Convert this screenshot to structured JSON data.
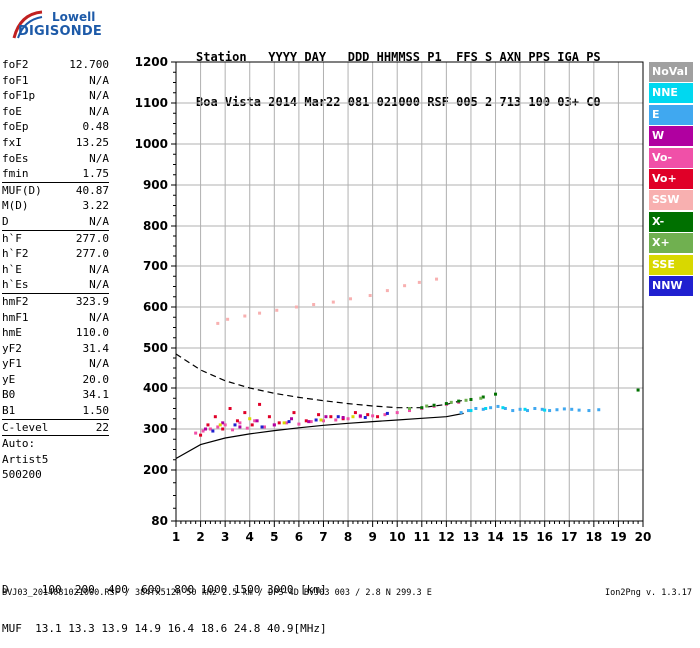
{
  "logo": {
    "line1": "Lowell",
    "line2": "DIGISONDE"
  },
  "header": {
    "row1": [
      "Station",
      "YYYY",
      "DAY",
      "DDD",
      "HHMMSS",
      "P1",
      "FFS",
      "S",
      "AXN",
      "PPS",
      "IGA",
      "PS"
    ],
    "row2": [
      "Boa Vista",
      "2014",
      "Mar22",
      "081",
      "021000",
      "RSF",
      "005",
      "2",
      "713",
      "100",
      "03+",
      "C0"
    ]
  },
  "params": [
    {
      "k": "foF2",
      "v": "12.700"
    },
    {
      "k": "foF1",
      "v": "N/A"
    },
    {
      "k": "foF1p",
      "v": "N/A"
    },
    {
      "k": "foE",
      "v": "N/A"
    },
    {
      "k": "foEp",
      "v": "0.48"
    },
    {
      "k": "fxI",
      "v": "13.25"
    },
    {
      "k": "foEs",
      "v": "N/A"
    },
    {
      "k": "fmin",
      "v": "1.75"
    },
    {
      "sep": true
    },
    {
      "k": "MUF(D)",
      "v": "40.87"
    },
    {
      "k": "M(D)",
      "v": "3.22"
    },
    {
      "k": "D",
      "v": "N/A"
    },
    {
      "sep": true
    },
    {
      "k": "h`F",
      "v": "277.0"
    },
    {
      "k": "h`F2",
      "v": "277.0"
    },
    {
      "k": "h`E",
      "v": "N/A"
    },
    {
      "k": "h`Es",
      "v": "N/A"
    },
    {
      "sep": true
    },
    {
      "k": "hmF2",
      "v": "323.9"
    },
    {
      "k": "hmF1",
      "v": "N/A"
    },
    {
      "k": "hmE",
      "v": "110.0"
    },
    {
      "k": "yF2",
      "v": "31.4"
    },
    {
      "k": "yF1",
      "v": "N/A"
    },
    {
      "k": "yE",
      "v": "20.0"
    },
    {
      "k": "B0",
      "v": "34.1"
    },
    {
      "k": "B1",
      "v": "1.50"
    },
    {
      "sep": true
    },
    {
      "k": "C-level",
      "v": "22"
    },
    {
      "sep": true
    },
    {
      "text": "Auto:"
    },
    {
      "text": "Artist5"
    },
    {
      "text": "500200"
    }
  ],
  "legend": [
    {
      "label": "NoVal",
      "color": "#a0a0a0"
    },
    {
      "label": "NNE",
      "color": "#00d8f0"
    },
    {
      "label": "E",
      "color": "#40a8f0"
    },
    {
      "label": "W",
      "color": "#b000a0"
    },
    {
      "label": "Vo-",
      "color": "#f050a8"
    },
    {
      "label": "Vo+",
      "color": "#e00028"
    },
    {
      "label": "SSW",
      "color": "#f8b0b0"
    },
    {
      "label": "X-",
      "color": "#007000"
    },
    {
      "label": "X+",
      "color": "#70b050"
    },
    {
      "label": "SSE",
      "color": "#d8d800"
    },
    {
      "label": "NNW",
      "color": "#2020d0"
    }
  ],
  "footer": {
    "d_label": "D",
    "d_values": [
      "100",
      "200",
      "400",
      "600",
      "800",
      "1000",
      "1500",
      "3000",
      "[km]"
    ],
    "muf_label": "MUF",
    "muf_values": [
      "13.1",
      "13.3",
      "13.9",
      "14.9",
      "16.4",
      "18.6",
      "24.8",
      "40.9",
      "[MHz]"
    ],
    "fileinfo": "BVJ03_2014081021000.RSF / 384fx512h 50 kHz 2.5 km / DPS-4D BVJ03 003 / 2.8 N 299.3 E",
    "version": "Ion2Png v. 1.3.17"
  },
  "chart_data": {
    "type": "scatter",
    "x_ticks": [
      1,
      2,
      3,
      4,
      5,
      6,
      7,
      8,
      9,
      10,
      11,
      12,
      13,
      14,
      15,
      16,
      17,
      18,
      19,
      20
    ],
    "y_ticks": [
      80,
      200,
      300,
      400,
      500,
      600,
      700,
      800,
      900,
      1000,
      1100,
      1200
    ],
    "xlim": [
      1,
      20
    ],
    "ylim": [
      80,
      1200
    ],
    "grid": true,
    "series": [
      {
        "name": "Vo-",
        "color": "#f050a8",
        "x": [
          1.8,
          2.1,
          2.4,
          2.7,
          3.0,
          3.3,
          3.6,
          3.9,
          4.2,
          4.6,
          5.0,
          5.5,
          6.0,
          6.5,
          7.0,
          7.5,
          8.0,
          8.5,
          9.0,
          9.5,
          10.0,
          10.5,
          11.0,
          11.5,
          12.0,
          12.5
        ],
        "y": [
          290,
          295,
          300,
          305,
          310,
          298,
          315,
          302,
          320,
          305,
          310,
          315,
          312,
          318,
          320,
          322,
          325,
          330,
          332,
          335,
          340,
          345,
          350,
          355,
          360,
          365
        ]
      },
      {
        "name": "Vo+",
        "color": "#e00028",
        "x": [
          2.0,
          2.3,
          2.6,
          2.9,
          3.2,
          3.5,
          3.8,
          4.1,
          4.4,
          4.8,
          5.2,
          5.8,
          6.3,
          6.8,
          7.3,
          7.8,
          8.3,
          8.8,
          9.2
        ],
        "y": [
          285,
          310,
          330,
          300,
          350,
          320,
          340,
          310,
          360,
          330,
          315,
          340,
          320,
          335,
          330,
          325,
          340,
          335,
          330
        ]
      },
      {
        "name": "E",
        "color": "#40a8f0",
        "x": [
          12.6,
          12.9,
          13.2,
          13.5,
          13.8,
          14.1,
          14.4,
          14.7,
          15.0,
          15.3,
          15.6,
          15.9,
          16.2,
          16.5,
          16.8,
          17.1,
          17.4,
          17.8,
          18.2
        ],
        "y": [
          340,
          345,
          350,
          348,
          352,
          355,
          350,
          345,
          348,
          345,
          350,
          348,
          345,
          347,
          349,
          348,
          346,
          345,
          347
        ]
      },
      {
        "name": "W",
        "color": "#b000a0",
        "x": [
          2.2,
          2.9,
          3.6,
          4.3,
          5.0,
          5.7,
          6.4,
          7.1,
          7.8,
          8.5
        ],
        "y": [
          300,
          315,
          305,
          320,
          310,
          325,
          318,
          330,
          328,
          332
        ]
      },
      {
        "name": "NNW",
        "color": "#2020d0",
        "x": [
          2.5,
          3.4,
          4.5,
          5.6,
          6.7,
          7.6,
          8.7,
          9.6
        ],
        "y": [
          295,
          310,
          305,
          318,
          322,
          330,
          328,
          338
        ]
      },
      {
        "name": "SSW",
        "color": "#f8b0b0",
        "x": [
          2.7,
          3.1,
          3.8,
          4.4,
          5.1,
          5.9,
          6.6,
          7.4,
          8.1,
          8.9,
          9.6,
          10.3,
          10.9,
          11.6
        ],
        "y": [
          560,
          570,
          578,
          585,
          592,
          600,
          606,
          612,
          620,
          628,
          640,
          652,
          660,
          668
        ]
      },
      {
        "name": "X-",
        "color": "#007000",
        "x": [
          11.0,
          11.5,
          12.0,
          12.5,
          13.0,
          13.5,
          14.0,
          19.8
        ],
        "y": [
          352,
          358,
          362,
          368,
          372,
          378,
          385,
          395
        ]
      },
      {
        "name": "X+",
        "color": "#70b050",
        "x": [
          10.5,
          11.2,
          12.2,
          12.8,
          13.4
        ],
        "y": [
          350,
          356,
          365,
          370,
          375
        ]
      },
      {
        "name": "NNE",
        "color": "#00d8f0",
        "x": [
          13.0,
          13.6,
          14.3,
          15.2,
          16.0
        ],
        "y": [
          345,
          350,
          352,
          348,
          346
        ]
      },
      {
        "name": "SSE",
        "color": "#d8d800",
        "x": [
          2.8,
          4.0,
          5.4,
          6.9,
          8.2
        ],
        "y": [
          310,
          325,
          315,
          322,
          330
        ]
      }
    ],
    "profile_solid": {
      "x": [
        1.0,
        2.0,
        3.0,
        4.0,
        5.0,
        6.0,
        7.0,
        8.0,
        9.0,
        10.0,
        11.0,
        12.0,
        12.7
      ],
      "y": [
        228,
        262,
        278,
        288,
        296,
        303,
        309,
        314,
        318,
        322,
        326,
        330,
        338
      ]
    },
    "profile_dashed": {
      "x": [
        1.0,
        2.0,
        3.0,
        4.0,
        5.0,
        6.0,
        7.0,
        8.0,
        9.0,
        10.0,
        11.0,
        12.0,
        12.8
      ],
      "y": [
        485,
        445,
        418,
        400,
        387,
        377,
        369,
        362,
        356,
        352,
        352,
        360,
        372
      ]
    }
  }
}
